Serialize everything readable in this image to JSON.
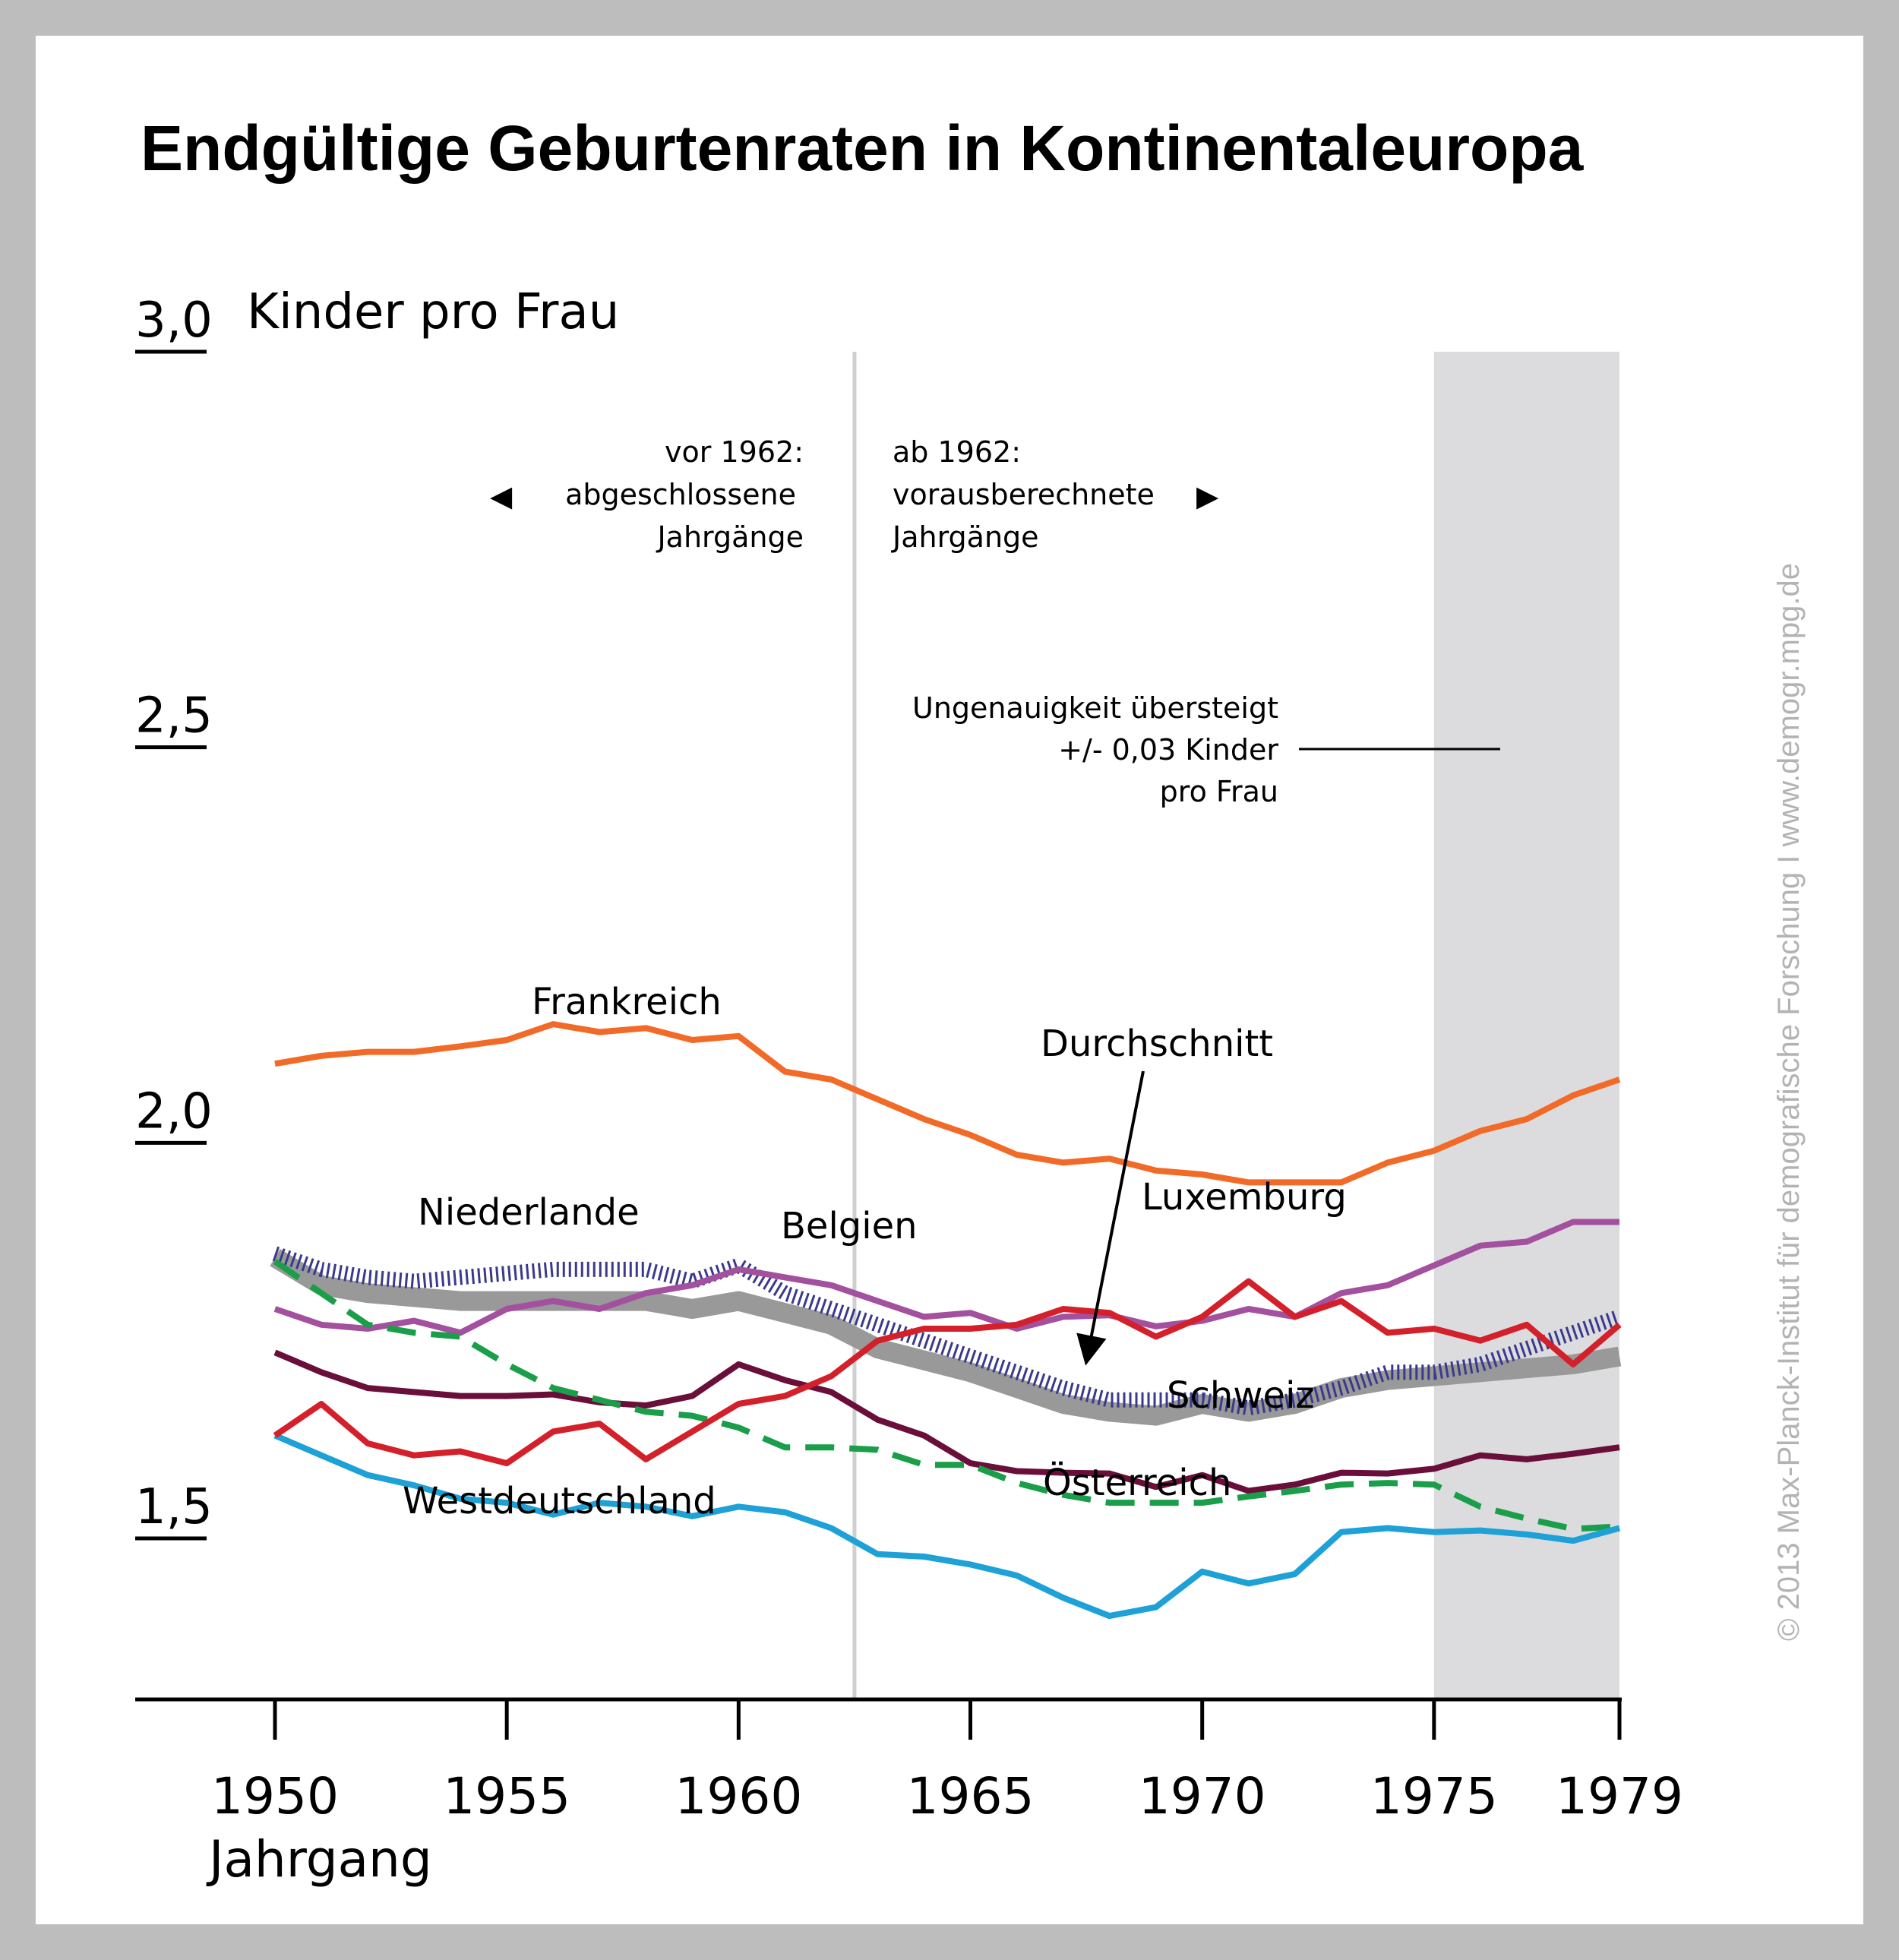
{
  "chart_data": {
    "type": "line",
    "title": "Endgültige Geburtenraten in Kontinentaleuropa",
    "ylabel": "Kinder pro Frau",
    "xlabel": "Jahrgang",
    "ylim": [
      1.25,
      3.0
    ],
    "xlim": [
      1947,
      1979
    ],
    "yticks": [
      "3,0",
      "2,5",
      "2,0",
      "1,5"
    ],
    "ytick_values": [
      3.0,
      2.5,
      2.0,
      1.5
    ],
    "xticks": [
      "1950",
      "1955",
      "1960",
      "1965",
      "1970",
      "1975",
      "1979"
    ],
    "xtick_values": [
      1950,
      1955,
      1960,
      1965,
      1970,
      1975,
      1979
    ],
    "divider_year": 1962.5,
    "shaded_from": 1975,
    "annotations": {
      "left_note": [
        "vor 1962:",
        "abgeschlossene",
        "Jahrgänge"
      ],
      "right_note": [
        "ab 1962:",
        "vorausberechnete",
        "Jahrgänge"
      ],
      "shade_note": [
        "Ungenauigkeit übersteigt",
        "+/- 0,03 Kinder",
        "pro Frau"
      ],
      "arrow_left": "◀",
      "arrow_right": "▶"
    },
    "x": [
      1950,
      1951,
      1952,
      1953,
      1954,
      1955,
      1956,
      1957,
      1958,
      1959,
      1960,
      1961,
      1962,
      1963,
      1964,
      1965,
      1966,
      1967,
      1968,
      1969,
      1970,
      1971,
      1972,
      1973,
      1974,
      1975,
      1976,
      1977,
      1978,
      1979
    ],
    "series": [
      {
        "name": "Frankreich",
        "color": "#f26a27",
        "style": "solid",
        "values": [
          2.1,
          2.11,
          2.115,
          2.115,
          2.122,
          2.13,
          2.15,
          2.14,
          2.145,
          2.13,
          2.135,
          2.09,
          2.08,
          2.055,
          2.03,
          2.01,
          1.985,
          1.975,
          1.98,
          1.965,
          1.96,
          1.95,
          1.95,
          1.95,
          1.975,
          1.99,
          2.015,
          2.03,
          2.06,
          2.08
        ]
      },
      {
        "name": "Niederlande",
        "color": "#a3509e",
        "style": "solid",
        "values": [
          1.79,
          1.77,
          1.765,
          1.775,
          1.76,
          1.79,
          1.8,
          1.79,
          1.81,
          1.82,
          1.84,
          1.83,
          1.82,
          1.8,
          1.78,
          1.785,
          1.765,
          1.78,
          1.782,
          1.768,
          1.775,
          1.79,
          1.78,
          1.81,
          1.82,
          1.845,
          1.87,
          1.875,
          1.9,
          1.9
        ]
      },
      {
        "name": "Belgien",
        "color": "#3a3a8c",
        "style": "hatched",
        "values": [
          1.86,
          1.84,
          1.83,
          1.825,
          1.83,
          1.835,
          1.84,
          1.84,
          1.84,
          1.825,
          1.845,
          1.81,
          1.79,
          1.77,
          1.75,
          1.73,
          1.71,
          1.69,
          1.675,
          1.675,
          1.675,
          1.665,
          1.675,
          1.69,
          1.71,
          1.71,
          1.72,
          1.74,
          1.76,
          1.78
        ]
      },
      {
        "name": "Durchschnitt",
        "color": "#999999",
        "style": "thick",
        "values": [
          1.855,
          1.82,
          1.81,
          1.805,
          1.8,
          1.8,
          1.8,
          1.8,
          1.8,
          1.79,
          1.8,
          1.785,
          1.77,
          1.74,
          1.725,
          1.71,
          1.69,
          1.67,
          1.66,
          1.655,
          1.67,
          1.66,
          1.67,
          1.69,
          1.7,
          1.705,
          1.71,
          1.715,
          1.72,
          1.73
        ]
      },
      {
        "name": "Luxemburg",
        "color": "#d3202a",
        "style": "solid",
        "values": [
          1.63,
          1.67,
          1.62,
          1.605,
          1.61,
          1.595,
          1.635,
          1.645,
          1.6,
          1.635,
          1.67,
          1.68,
          1.705,
          1.75,
          1.765,
          1.765,
          1.77,
          1.79,
          1.785,
          1.755,
          1.78,
          1.825,
          1.78,
          1.8,
          1.76,
          1.765,
          1.75,
          1.77,
          1.72,
          1.77
        ]
      },
      {
        "name": "Schweiz",
        "color": "#6a0f3a",
        "style": "solid",
        "values": [
          1.735,
          1.71,
          1.69,
          1.685,
          1.68,
          1.68,
          1.682,
          1.672,
          1.668,
          1.68,
          1.72,
          1.7,
          1.685,
          1.65,
          1.63,
          1.595,
          1.585,
          1.583,
          1.582,
          1.565,
          1.58,
          1.56,
          1.568,
          1.583,
          1.582,
          1.588,
          1.605,
          1.6,
          1.607,
          1.615
        ]
      },
      {
        "name": "Österreich",
        "color": "#1a9e4a",
        "style": "dashed",
        "values": [
          1.85,
          1.81,
          1.77,
          1.76,
          1.755,
          1.72,
          1.69,
          1.675,
          1.66,
          1.655,
          1.64,
          1.615,
          1.615,
          1.612,
          1.593,
          1.593,
          1.57,
          1.555,
          1.545,
          1.545,
          1.545,
          1.553,
          1.56,
          1.568,
          1.57,
          1.568,
          1.54,
          1.525,
          1.512,
          1.515
        ]
      },
      {
        "name": "Westdeutschland",
        "color": "#1da1d6",
        "style": "solid",
        "values": [
          1.63,
          1.605,
          1.58,
          1.567,
          1.55,
          1.545,
          1.53,
          1.545,
          1.54,
          1.528,
          1.54,
          1.533,
          1.513,
          1.48,
          1.477,
          1.467,
          1.453,
          1.425,
          1.402,
          1.413,
          1.458,
          1.443,
          1.455,
          1.508,
          1.513,
          1.508,
          1.51,
          1.505,
          1.497,
          1.513
        ]
      }
    ]
  },
  "credit": "© 2013 Max-Planck-Institut für demografische Forschung I www.demogr.mpg.de"
}
